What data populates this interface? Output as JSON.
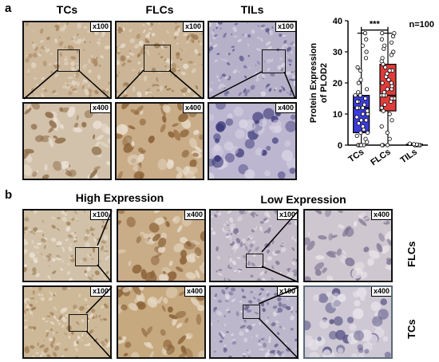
{
  "panel_a": {
    "letter": "a",
    "columns": [
      "TCs",
      "FLCs",
      "TILs"
    ],
    "mag_low": "x100",
    "mag_high": "x400"
  },
  "panel_b": {
    "letter": "b",
    "columns": [
      "High Expression",
      "Low Expression"
    ],
    "rows": [
      "FLCs",
      "TCs"
    ],
    "mag_low": "x100",
    "mag_high": "x400"
  },
  "chart_data": {
    "type": "box",
    "categories": [
      "TCs",
      "FLCs",
      "TILs"
    ],
    "ylabel": "Protein Expression of PLOD2",
    "ylim": [
      0,
      40
    ],
    "yticks": [
      0,
      10,
      20,
      30,
      40
    ],
    "annotation": "n=100",
    "significance": "***",
    "colors": {
      "TCs": "#3b3bdc",
      "FLCs": "#e23b3b",
      "TILs": "#888888"
    },
    "boxes": [
      {
        "category": "TCs",
        "min": 0,
        "q1": 4,
        "median": 12,
        "q3": 16,
        "max": 36
      },
      {
        "category": "FLCs",
        "min": 0,
        "q1": 11,
        "median": 16,
        "q3": 26,
        "max": 36
      },
      {
        "category": "TILs",
        "min": 0,
        "q1": 0,
        "median": 0,
        "q3": 0.3,
        "max": 0.6
      }
    ],
    "points": {
      "TCs": [
        0,
        0,
        0,
        0,
        0,
        0,
        1,
        2,
        3,
        4,
        4,
        5,
        6,
        7,
        8,
        8,
        9,
        10,
        10,
        11,
        12,
        12,
        12,
        13,
        14,
        14,
        15,
        16,
        16,
        17,
        18,
        20,
        21,
        24,
        25,
        28,
        30,
        32,
        34,
        36
      ],
      "FLCs": [
        0,
        0,
        0,
        2,
        4,
        6,
        8,
        10,
        11,
        12,
        12,
        13,
        14,
        15,
        15,
        16,
        16,
        16,
        17,
        18,
        18,
        19,
        20,
        20,
        21,
        22,
        23,
        24,
        24,
        25,
        26,
        27,
        28,
        29,
        30,
        31,
        32,
        33,
        34,
        35,
        36,
        36
      ],
      "TILs": [
        0,
        0,
        0,
        0,
        0,
        0,
        0.2,
        0.3,
        0.5
      ]
    }
  }
}
